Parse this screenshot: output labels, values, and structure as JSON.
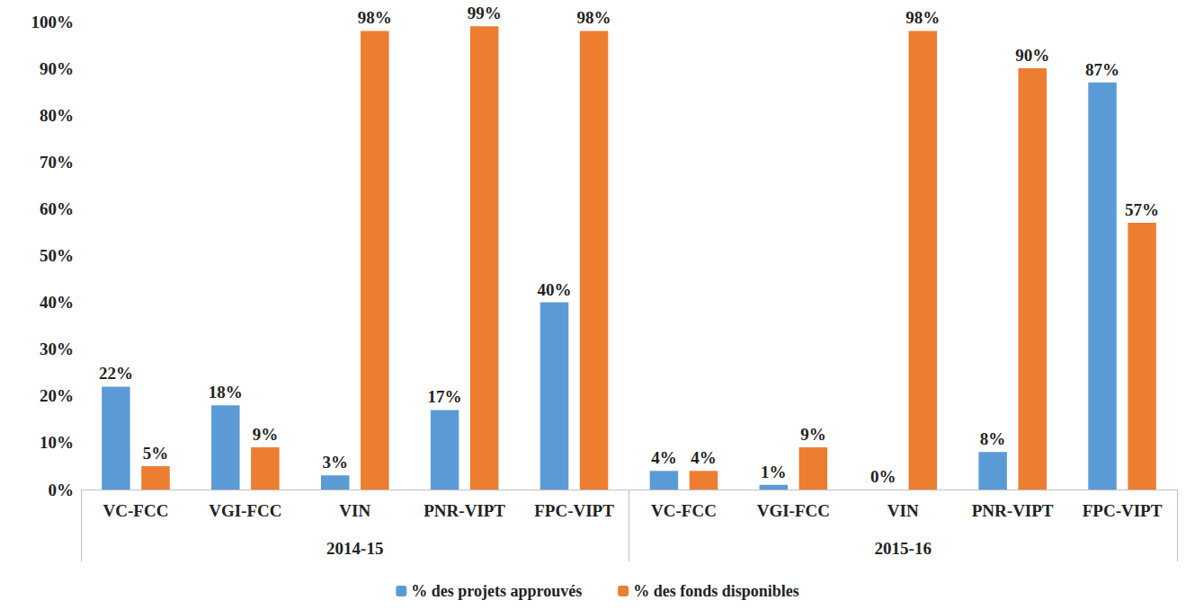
{
  "chart_data": {
    "type": "bar",
    "categories": [
      "VC-FCC",
      "VGI-FCC",
      "VIN",
      "PNR-VIPT",
      "FPC-VIPT",
      "VC-FCC",
      "VGI-FCC",
      "VIN",
      "PNR-VIPT",
      "FPC-VIPT"
    ],
    "category_groups": [
      "2014-15",
      "2015-16"
    ],
    "series": [
      {
        "name": "% des projets approuvés",
        "color": "#5b9bd5",
        "values": [
          22,
          18,
          3,
          17,
          40,
          4,
          1,
          0,
          8,
          87
        ],
        "value_labels": [
          "22%",
          "18%",
          "3%",
          "17%",
          "40%",
          "4%",
          "1%",
          "0%",
          "8%",
          "87%"
        ]
      },
      {
        "name": "% des fonds disponibles",
        "color": "#ed7d31",
        "values": [
          5,
          9,
          98,
          99,
          98,
          4,
          9,
          98,
          90,
          57
        ],
        "value_labels": [
          "5%",
          "9%",
          "98%",
          "99%",
          "98%",
          "4%",
          "9%",
          "98%",
          "90%",
          "57%"
        ]
      }
    ],
    "ylim": [
      0,
      100
    ],
    "yticks": [
      {
        "value": 0,
        "label": "0%"
      },
      {
        "value": 10,
        "label": "10%"
      },
      {
        "value": 20,
        "label": "20%"
      },
      {
        "value": 30,
        "label": "30%"
      },
      {
        "value": 40,
        "label": "40%"
      },
      {
        "value": 50,
        "label": "50%"
      },
      {
        "value": 60,
        "label": "60%"
      },
      {
        "value": 70,
        "label": "70%"
      },
      {
        "value": 80,
        "label": "80%"
      },
      {
        "value": 90,
        "label": "90%"
      },
      {
        "value": 100,
        "label": "100%"
      }
    ],
    "grid": false,
    "legend": "bottom",
    "data_labels": true
  }
}
